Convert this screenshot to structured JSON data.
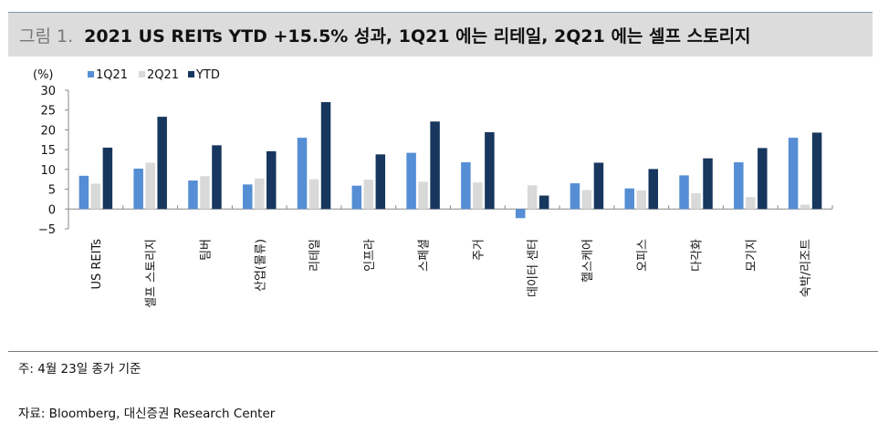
{
  "title": {
    "prefix": "그림 1.",
    "text": "2021 US REITs YTD +15.5% 성과, 1Q21 에는 리테일, 2Q21 에는 셀프 스토리지"
  },
  "chart_data": {
    "type": "bar",
    "ylabel": "(%)",
    "ylim": [
      -5,
      30
    ],
    "yticks": [
      30,
      25,
      20,
      15,
      10,
      5,
      0,
      -5
    ],
    "ytick_labels": [
      "30",
      "25",
      "20",
      "15",
      "10",
      "5",
      "0",
      "−5"
    ],
    "legend_position": "top-left",
    "categories": [
      "US REITs",
      "셀프 스토리지",
      "팀버",
      "산업(물류)",
      "리테일",
      "인프라",
      "스페셜",
      "주거",
      "데이터 센터",
      "헬스케어",
      "오피스",
      "다각화",
      "모기지",
      "숙박/리조트"
    ],
    "series": [
      {
        "name": "1Q21",
        "color": "#558ed5",
        "values": [
          8.4,
          10.2,
          7.2,
          6.2,
          18.0,
          5.9,
          14.2,
          11.8,
          -2.3,
          6.5,
          5.2,
          8.5,
          11.8,
          18.0
        ]
      },
      {
        "name": "2Q21",
        "color": "#d9d9d9",
        "values": [
          6.4,
          11.7,
          8.3,
          7.7,
          7.5,
          7.4,
          6.9,
          6.7,
          6.0,
          4.8,
          4.7,
          4.0,
          3.0,
          1.1
        ]
      },
      {
        "name": "YTD",
        "color": "#17375e",
        "values": [
          15.5,
          23.3,
          16.1,
          14.6,
          27.0,
          13.8,
          22.1,
          19.4,
          3.4,
          11.7,
          10.1,
          12.8,
          15.4,
          19.3
        ]
      }
    ]
  },
  "footer": {
    "note": "주: 4월 23일 종가 기준",
    "source": "자료: Bloomberg, 대신증권 Research Center"
  }
}
